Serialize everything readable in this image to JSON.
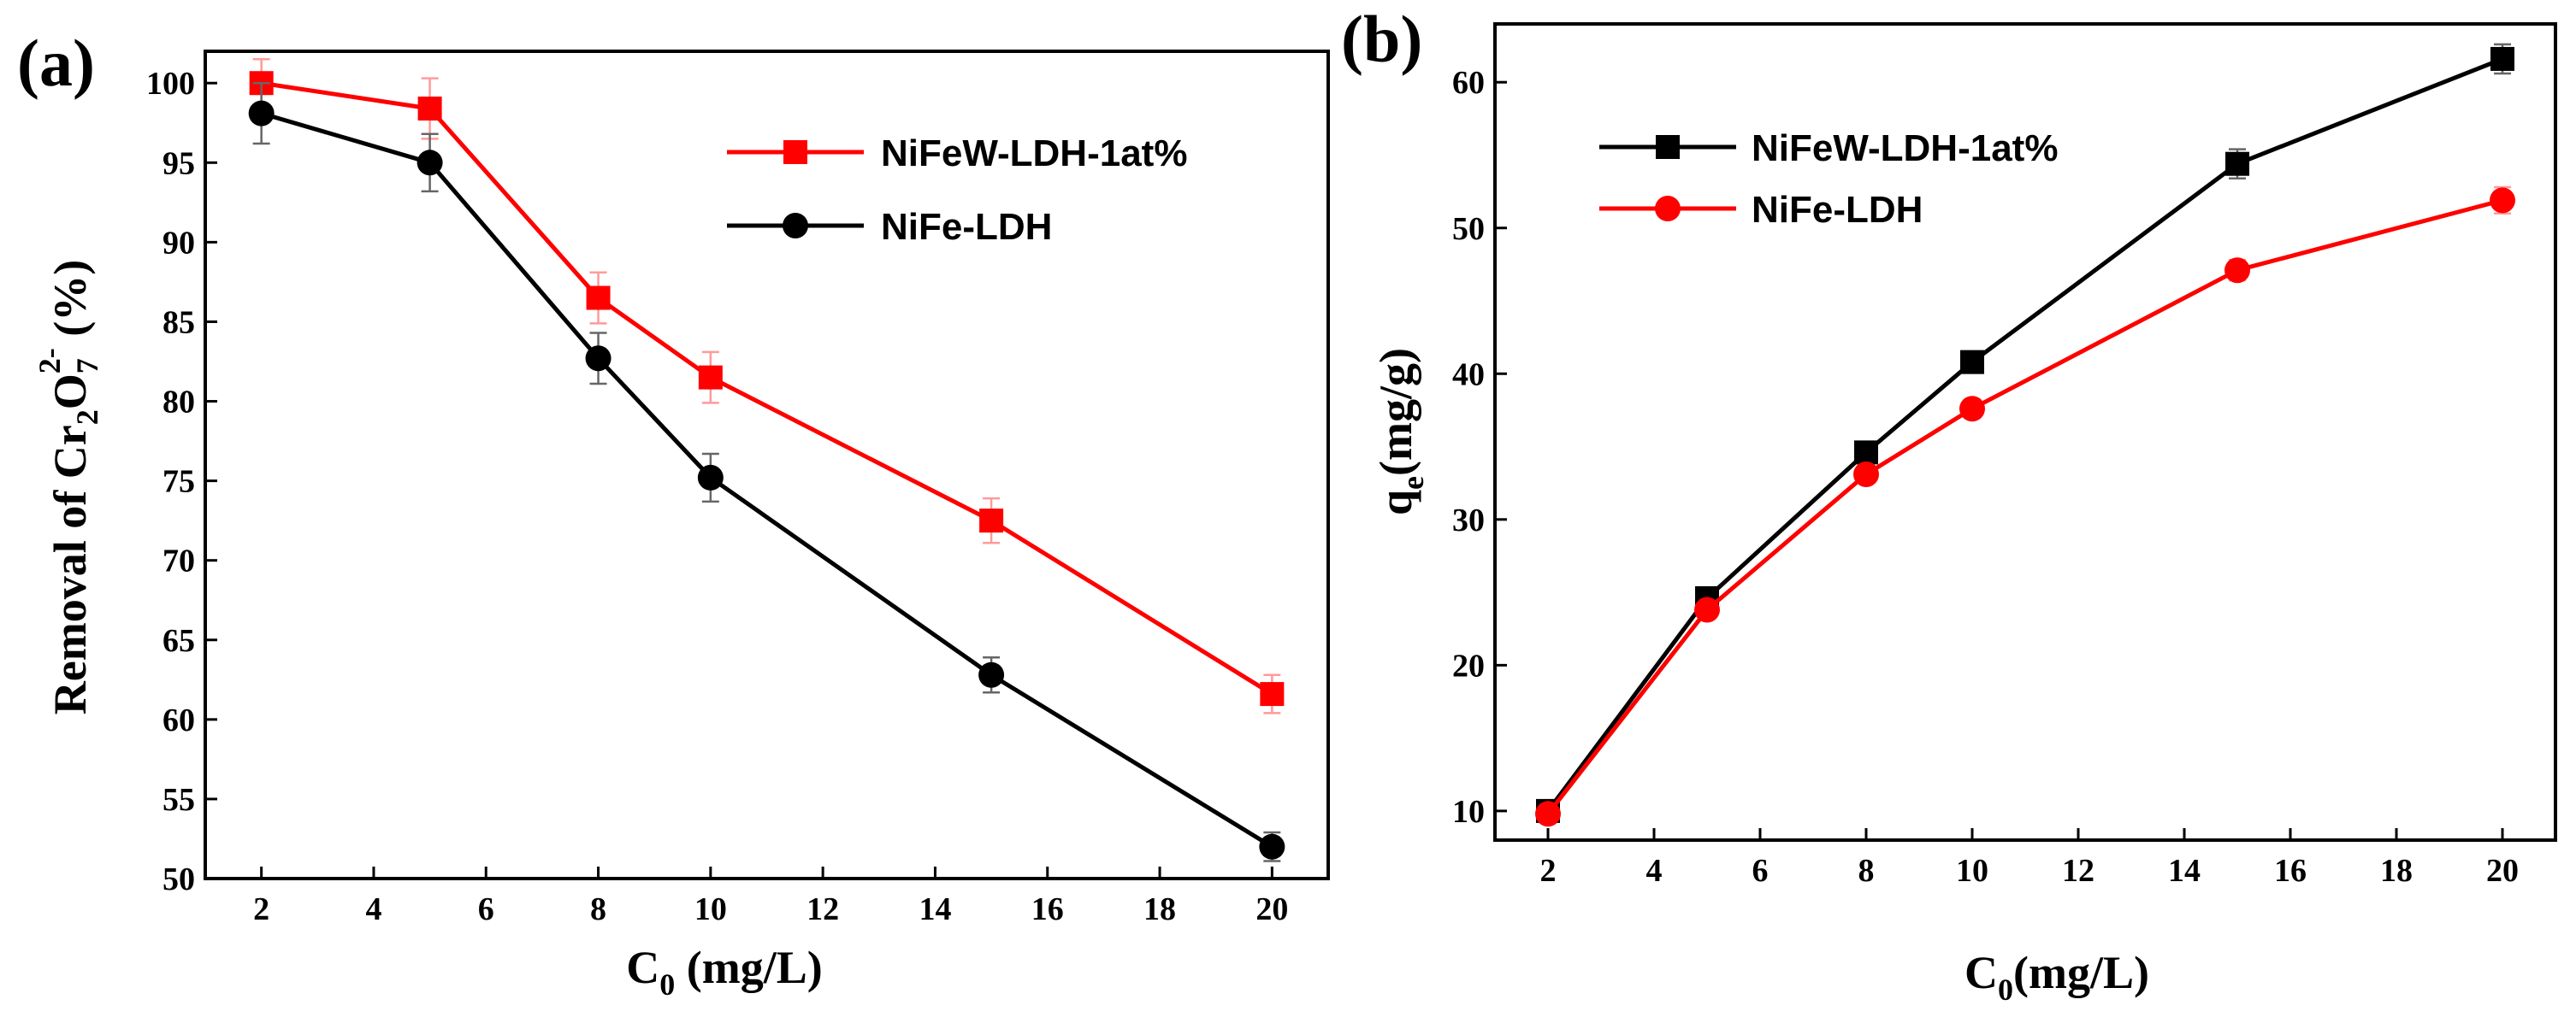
{
  "chart_data": [
    {
      "type": "line",
      "panel_label": "(a)",
      "title": "",
      "xlabel": "C",
      "xlabel_sub": "0",
      "xlabel_unit": " (mg/L)",
      "ylabel_prefix": "Removal of Cr",
      "ylabel_sub1": "2",
      "ylabel_mid": "O",
      "ylabel_sub2": "7",
      "ylabel_sup": "2-",
      "ylabel_suffix": " (%)",
      "xlim": [
        1,
        21
      ],
      "ylim": [
        50,
        102
      ],
      "xticks": [
        2,
        4,
        6,
        8,
        10,
        12,
        14,
        16,
        18,
        20
      ],
      "yticks": [
        50,
        55,
        60,
        65,
        70,
        75,
        80,
        85,
        90,
        95,
        100
      ],
      "legend_position": "top-right",
      "x": [
        2,
        5,
        8,
        10,
        15,
        20
      ],
      "series": [
        {
          "name": "NiFeW-LDH-1at%",
          "marker": "square",
          "color": "#ff0000",
          "errcolor": "#ff9a9a",
          "values": [
            100.0,
            98.4,
            86.5,
            81.5,
            72.5,
            61.6
          ],
          "errors": [
            1.5,
            1.9,
            1.6,
            1.6,
            1.4,
            1.2
          ]
        },
        {
          "name": "NiFe-LDH",
          "marker": "circle",
          "color": "#000000",
          "errcolor": "#666666",
          "values": [
            98.1,
            95.0,
            82.7,
            75.2,
            62.8,
            52.0
          ],
          "errors": [
            1.9,
            1.8,
            1.6,
            1.5,
            1.1,
            0.9
          ]
        }
      ]
    },
    {
      "type": "line",
      "panel_label": "(b)",
      "title": "",
      "xlabel": "C",
      "xlabel_sub": "0",
      "xlabel_unit": "(mg/L)",
      "ylabel_prefix": "q",
      "ylabel_sub1": "e",
      "ylabel_suffix": "(mg/g)",
      "xlim": [
        1,
        21
      ],
      "ylim": [
        8,
        64
      ],
      "xticks": [
        2,
        4,
        6,
        8,
        10,
        12,
        14,
        16,
        18,
        20
      ],
      "yticks": [
        10,
        20,
        30,
        40,
        50,
        60
      ],
      "legend_position": "top-left",
      "x": [
        2,
        5,
        8,
        10,
        15,
        20
      ],
      "series": [
        {
          "name": "NiFeW-LDH-1at%",
          "marker": "square",
          "color": "#000000",
          "errcolor": "#666666",
          "values": [
            10.0,
            24.6,
            34.6,
            40.8,
            54.4,
            61.6
          ],
          "errors": [
            0.3,
            0.5,
            0.7,
            0.6,
            1.0,
            1.0
          ]
        },
        {
          "name": "NiFe-LDH",
          "marker": "circle",
          "color": "#ff0000",
          "errcolor": "#ff9a9a",
          "values": [
            9.8,
            23.8,
            33.1,
            37.6,
            47.1,
            51.9
          ],
          "errors": [
            0.3,
            0.4,
            0.6,
            0.6,
            0.7,
            0.9
          ]
        }
      ]
    }
  ]
}
